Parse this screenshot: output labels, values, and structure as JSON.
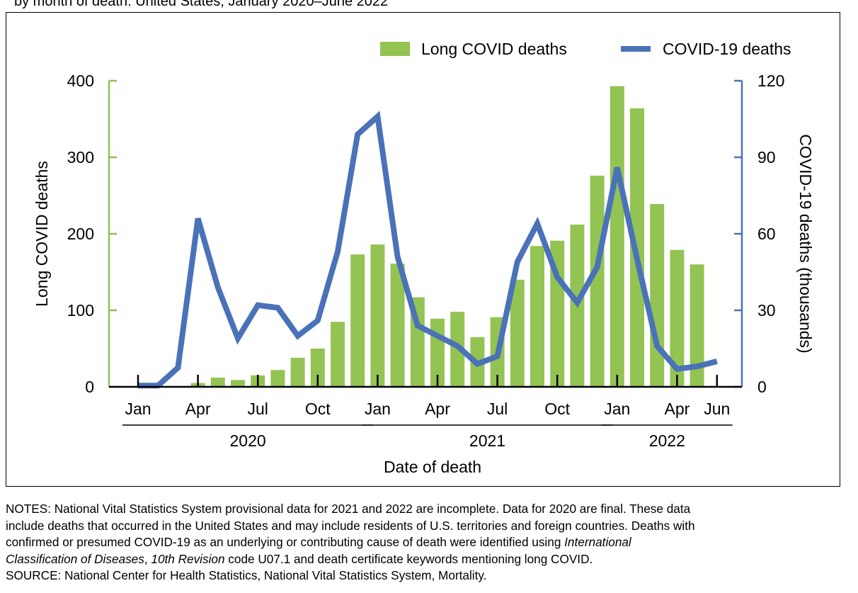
{
  "top_cut_text": "by month of death: United States, January 2020–June 2022",
  "notes": {
    "line1": "NOTES: National Vital Statistics System provisional data for 2021 and 2022 are incomplete. Data for 2020 are final. These data",
    "line2": "include deaths that occurred in the United States and may include residents of U.S. territories and foreign countries. Deaths with",
    "line3_pre": "confirmed or presumed COVID-19 as an underlying or contributing cause of death were identified using ",
    "line3_italic": "International",
    "line4_italic1": "Classification of Diseases",
    "line4_mid": ", ",
    "line4_italic2": "10th Revision",
    "line4_post": " code U07.1 and death certificate keywords mentioning long COVID.",
    "source": "SOURCE: National Center for Health Statistics, National Vital Statistics System, Mortality."
  },
  "colors": {
    "bar": "#93c353",
    "line": "#4a72b8",
    "left_axis": "#8cc24d",
    "right_axis": "#4a72b8"
  },
  "chart_data": {
    "type": "bar+line",
    "xlabel": "Date of death",
    "x_tick_labels": [
      "Jan",
      "Apr",
      "Jul",
      "Oct",
      "Jan",
      "Apr",
      "Jul",
      "Oct",
      "Jan",
      "Apr",
      "Jun"
    ],
    "x_tick_months": [
      0,
      3,
      6,
      9,
      12,
      15,
      18,
      21,
      24,
      27,
      29
    ],
    "year_labels": [
      {
        "label": "2020",
        "start": 0,
        "end": 11
      },
      {
        "label": "2021",
        "start": 12,
        "end": 23
      },
      {
        "label": "2022",
        "start": 24,
        "end": 29
      }
    ],
    "months": [
      "2020-01",
      "2020-02",
      "2020-03",
      "2020-04",
      "2020-05",
      "2020-06",
      "2020-07",
      "2020-08",
      "2020-09",
      "2020-10",
      "2020-11",
      "2020-12",
      "2021-01",
      "2021-02",
      "2021-03",
      "2021-04",
      "2021-05",
      "2021-06",
      "2021-07",
      "2021-08",
      "2021-09",
      "2021-10",
      "2021-11",
      "2021-12",
      "2022-01",
      "2022-02",
      "2022-03",
      "2022-04",
      "2022-05",
      "2022-06"
    ],
    "series": [
      {
        "name": "Long COVID deaths",
        "type": "bar",
        "axis": "left",
        "values": [
          0,
          0,
          0,
          5,
          12,
          9,
          15,
          22,
          38,
          50,
          85,
          173,
          186,
          161,
          117,
          89,
          98,
          65,
          91,
          140,
          184,
          191,
          212,
          276,
          393,
          364,
          239,
          179,
          160,
          null
        ]
      },
      {
        "name": "COVID-19 deaths",
        "type": "line",
        "axis": "right",
        "values": [
          0.5,
          0.5,
          7.5,
          66,
          39,
          19,
          32,
          31,
          20,
          26,
          53,
          99,
          106,
          51,
          24,
          20,
          16,
          9,
          12,
          49,
          64,
          43,
          33,
          47,
          86,
          50,
          16,
          7,
          8,
          10
        ]
      }
    ],
    "left_axis": {
      "label": "Long COVID deaths",
      "ticks": [
        0,
        100,
        200,
        300,
        400
      ],
      "ylim": [
        0,
        400
      ]
    },
    "right_axis": {
      "label": "COVID-19 deaths (thousands)",
      "ticks": [
        0,
        30,
        60,
        90,
        120
      ],
      "ylim": [
        0,
        120
      ]
    },
    "legend": {
      "position": "top-right"
    }
  }
}
